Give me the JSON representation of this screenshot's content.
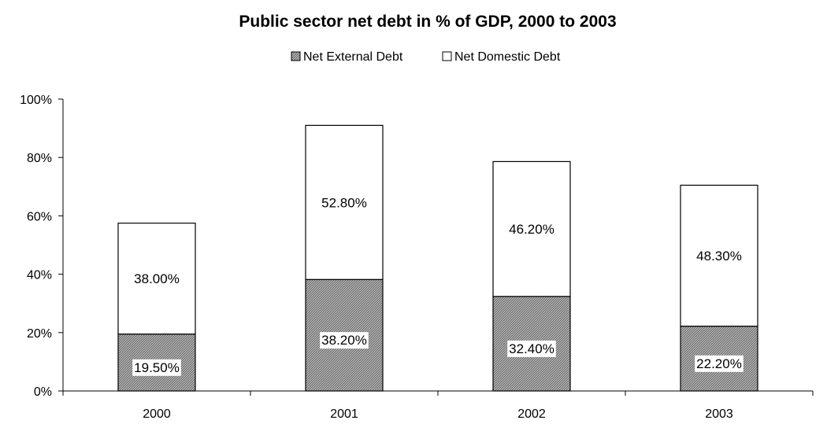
{
  "chart_data": {
    "type": "bar",
    "stacked": true,
    "title": "Public sector net debt in % of GDP, 2000 to 2003",
    "categories": [
      "2000",
      "2001",
      "2002",
      "2003"
    ],
    "series": [
      {
        "name": "Net External Debt",
        "values": [
          19.5,
          38.2,
          32.4,
          22.2
        ],
        "labels": [
          "19.50%",
          "38.20%",
          "32.40%",
          "22.20%"
        ],
        "fill": "hatched-gray"
      },
      {
        "name": "Net Domestic Debt",
        "values": [
          38.0,
          52.8,
          46.2,
          48.3
        ],
        "labels": [
          "38.00%",
          "52.80%",
          "46.20%",
          "48.30%"
        ],
        "fill": "white"
      }
    ],
    "ylim": [
      0,
      100
    ],
    "yticks": [
      0,
      20,
      40,
      60,
      80,
      100
    ],
    "ytick_labels": [
      "0%",
      "20%",
      "40%",
      "60%",
      "80%",
      "100%"
    ],
    "xlabel": "",
    "ylabel": "",
    "grid": false,
    "legend_position": "top-center"
  }
}
